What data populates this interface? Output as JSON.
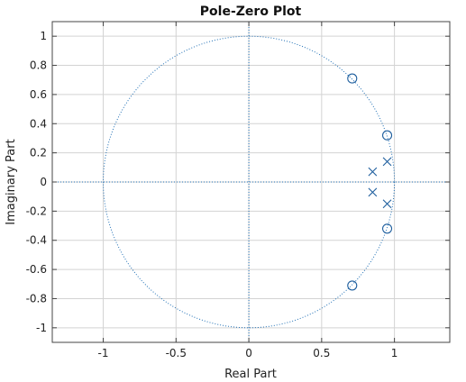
{
  "chart_data": {
    "type": "scatter",
    "title": "Pole-Zero Plot",
    "xlabel": "Real Part",
    "ylabel": "Imaginary Part",
    "xlim": [
      -1.35,
      1.38
    ],
    "ylim": [
      -1.1,
      1.1
    ],
    "xticks": [
      -1,
      -0.5,
      0,
      0.5,
      1
    ],
    "xtick_labels": [
      "-1",
      "-0.5",
      "0",
      "0.5",
      "1"
    ],
    "yticks": [
      1,
      0.8,
      0.6,
      0.4,
      0.2,
      0,
      -0.2,
      -0.4,
      -0.6,
      -0.8,
      -1
    ],
    "ytick_labels": [
      "1",
      "0.8",
      "0.6",
      "0.4",
      "0.2",
      "0",
      "-0.2",
      "-0.4",
      "-0.6",
      "-0.8",
      "-1"
    ],
    "grid": true,
    "unit_circle": true,
    "zeros": [
      {
        "x": 0.71,
        "y": 0.71
      },
      {
        "x": 0.95,
        "y": 0.32
      },
      {
        "x": 0.95,
        "y": -0.32
      },
      {
        "x": 0.71,
        "y": -0.71
      }
    ],
    "poles": [
      {
        "x": 0.85,
        "y": 0.07
      },
      {
        "x": 0.95,
        "y": 0.14
      },
      {
        "x": 0.85,
        "y": -0.07
      },
      {
        "x": 0.95,
        "y": -0.15
      }
    ],
    "colors": {
      "marker": "#1f5f9e",
      "guide": "#1f6fb5",
      "grid": "#d3d3d3",
      "frame": "#444444"
    }
  }
}
